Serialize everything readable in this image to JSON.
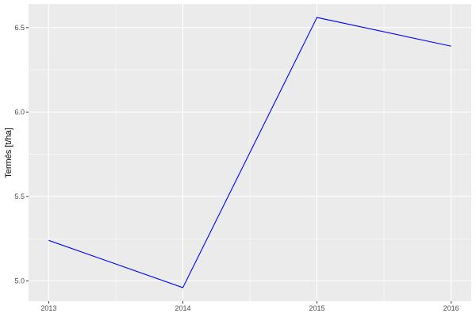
{
  "chart_data": {
    "type": "line",
    "title": "",
    "xlabel": "",
    "ylabel": "Termés [t/ha]",
    "x": [
      2013,
      2014,
      2015,
      2016
    ],
    "series": [
      {
        "values": [
          5.24,
          4.96,
          6.56,
          6.39
        ],
        "color": "#0000ff"
      }
    ],
    "xlim": [
      2012.85,
      2016.15
    ],
    "ylim": [
      4.88,
      6.64
    ],
    "xticks": [
      2013,
      2014,
      2015,
      2016
    ],
    "xtick_labels": [
      "2013",
      "2014",
      "2015",
      "2016"
    ],
    "yticks": [
      5.0,
      5.5,
      6.0,
      6.5
    ],
    "ytick_labels": [
      "5.0",
      "5.5",
      "6.0",
      "6.5"
    ],
    "grid": true,
    "panel_background": "#ebebeb",
    "grid_color": "#ffffff"
  }
}
